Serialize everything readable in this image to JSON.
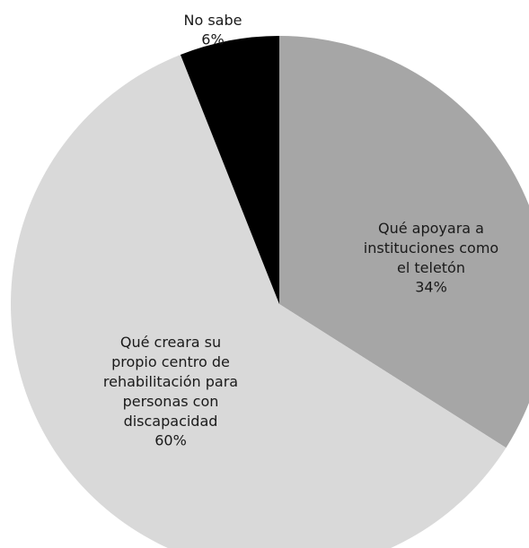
{
  "chart_data": {
    "type": "pie",
    "categories": [
      "Qué apoyara a instituciones como el teletón",
      "Qué creara su propio centro de rehabilitación para personas con discapacidad",
      "No sabe"
    ],
    "values": [
      34,
      60,
      6
    ],
    "value_labels": [
      "34%",
      "60%",
      "6%"
    ],
    "colors": [
      "#a6a6a6",
      "#d9d9d9",
      "#000000"
    ]
  }
}
